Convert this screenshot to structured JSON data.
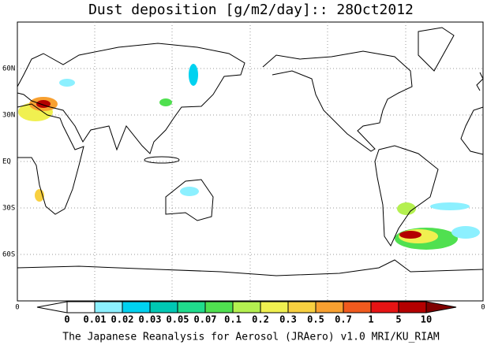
{
  "title": "Dust deposition [g/m2/day]:: 28Oct2012",
  "lat_labels": [
    "60N",
    "30N",
    "EQ",
    "30S",
    "60S"
  ],
  "lon_labels": [
    "0",
    "0"
  ],
  "colorbar": {
    "labels": [
      "0",
      "0.01",
      "0.02",
      "0.03",
      "0.05",
      "0.07",
      "0.1",
      "0.2",
      "0.3",
      "0.5",
      "0.7",
      "1",
      "5",
      "10"
    ],
    "colors": [
      "#ffffff",
      "#ffffff",
      "#8cf0ff",
      "#00d2f0",
      "#00c8b4",
      "#20dc8c",
      "#50e050",
      "#b4f050",
      "#f0f050",
      "#f8d040",
      "#f8a030",
      "#f05a1e",
      "#e61414",
      "#b40000",
      "#800000"
    ]
  },
  "footer": "The Japanese Reanalysis for Aerosol (JRAero) v1.0 MRI/KU_RIAM"
}
